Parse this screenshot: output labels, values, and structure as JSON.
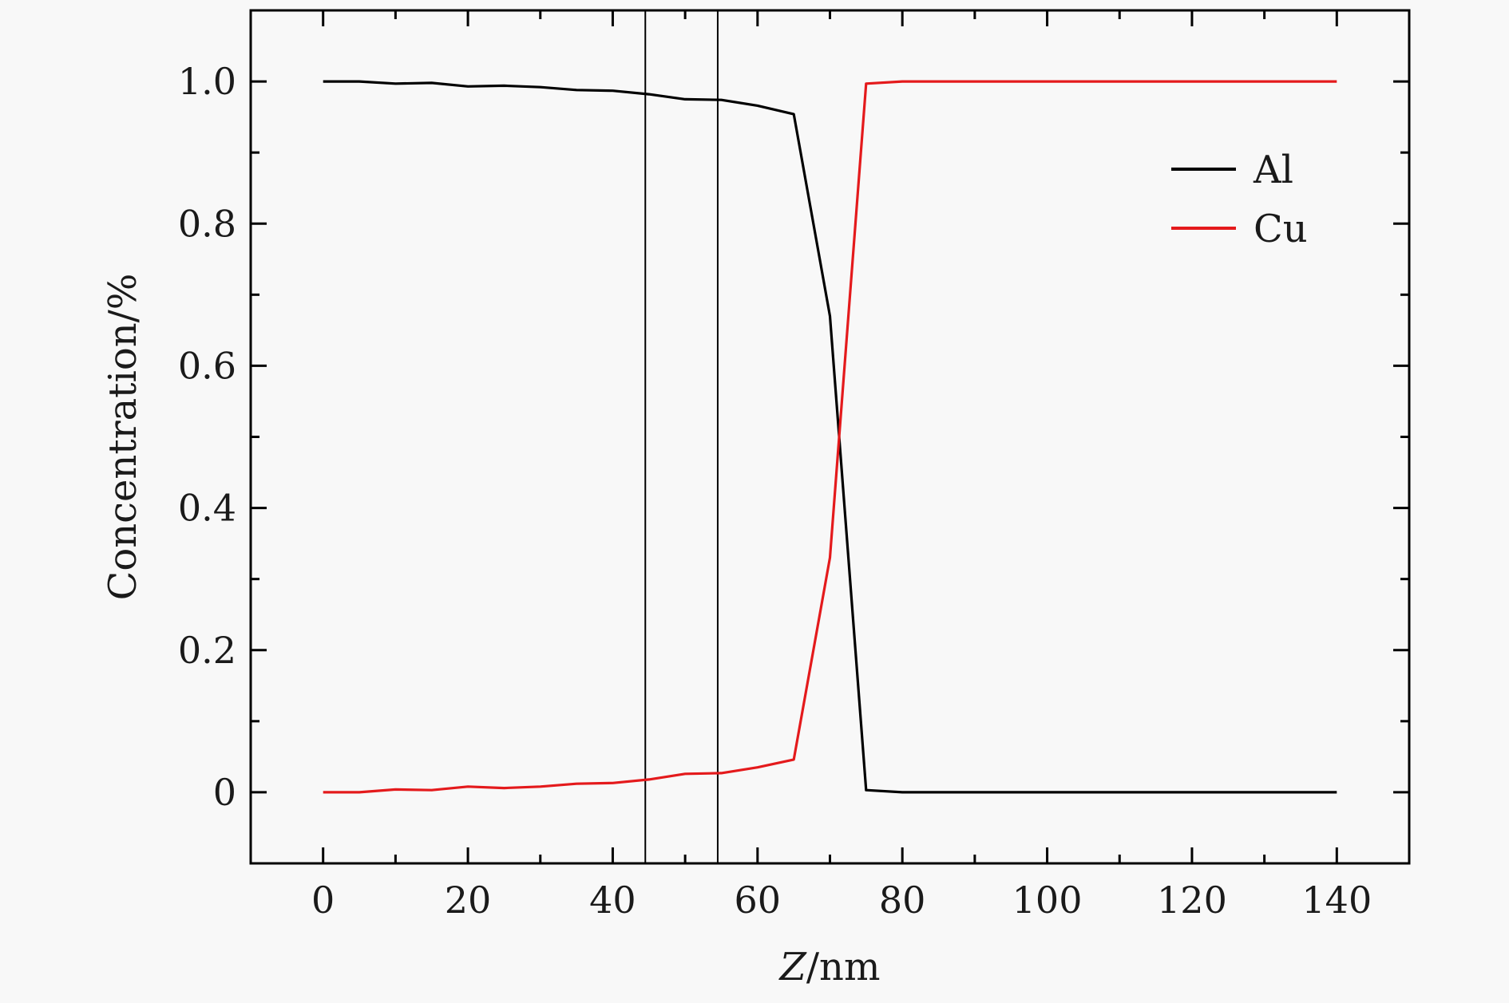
{
  "chart_data": {
    "type": "line",
    "xlabel_italic": "Z",
    "xlabel_unit": "/nm",
    "ylabel": "Concentration/%",
    "xlim": [
      -10,
      150
    ],
    "ylim": [
      -0.1,
      1.1
    ],
    "x_ticks": [
      0,
      20,
      40,
      60,
      80,
      100,
      120,
      140
    ],
    "x_tick_labels": [
      "0",
      "20",
      "40",
      "60",
      "80",
      "100",
      "120",
      "140"
    ],
    "y_ticks": [
      0,
      0.2,
      0.4,
      0.6,
      0.8,
      1.0
    ],
    "y_tick_labels": [
      "0",
      "0.2",
      "0.4",
      "0.6",
      "0.8",
      "1.0"
    ],
    "x_minor_step": 10,
    "y_minor_step": 0.1,
    "grid": false,
    "legend_position": "top-right",
    "vertical_lines": [
      44.5,
      54.5
    ],
    "series": [
      {
        "name": "Al",
        "color": "#000000",
        "x": [
          0,
          5,
          10,
          15,
          20,
          25,
          30,
          35,
          40,
          45,
          50,
          55,
          60,
          65,
          70,
          75,
          80,
          85,
          90,
          95,
          100,
          105,
          110,
          115,
          120,
          125,
          130,
          135,
          140
        ],
        "y": [
          1.0,
          1.0,
          0.997,
          0.998,
          0.993,
          0.994,
          0.992,
          0.988,
          0.987,
          0.982,
          0.975,
          0.974,
          0.966,
          0.954,
          0.67,
          0.003,
          0.0,
          0.0,
          0.0,
          0.0,
          0.0,
          0.0,
          0.0,
          0.0,
          0.0,
          0.0,
          0.0,
          0.0,
          0.0
        ]
      },
      {
        "name": "Cu",
        "color": "#e41a1c",
        "x": [
          0,
          5,
          10,
          15,
          20,
          25,
          30,
          35,
          40,
          45,
          50,
          55,
          60,
          65,
          70,
          75,
          80,
          85,
          90,
          95,
          100,
          105,
          110,
          115,
          120,
          125,
          130,
          135,
          140
        ],
        "y": [
          0.0,
          0.0,
          0.004,
          0.003,
          0.008,
          0.006,
          0.008,
          0.012,
          0.013,
          0.018,
          0.026,
          0.027,
          0.035,
          0.046,
          0.33,
          0.997,
          1.0,
          1.0,
          1.0,
          1.0,
          1.0,
          1.0,
          1.0,
          1.0,
          1.0,
          1.0,
          1.0,
          1.0,
          1.0
        ]
      }
    ]
  }
}
